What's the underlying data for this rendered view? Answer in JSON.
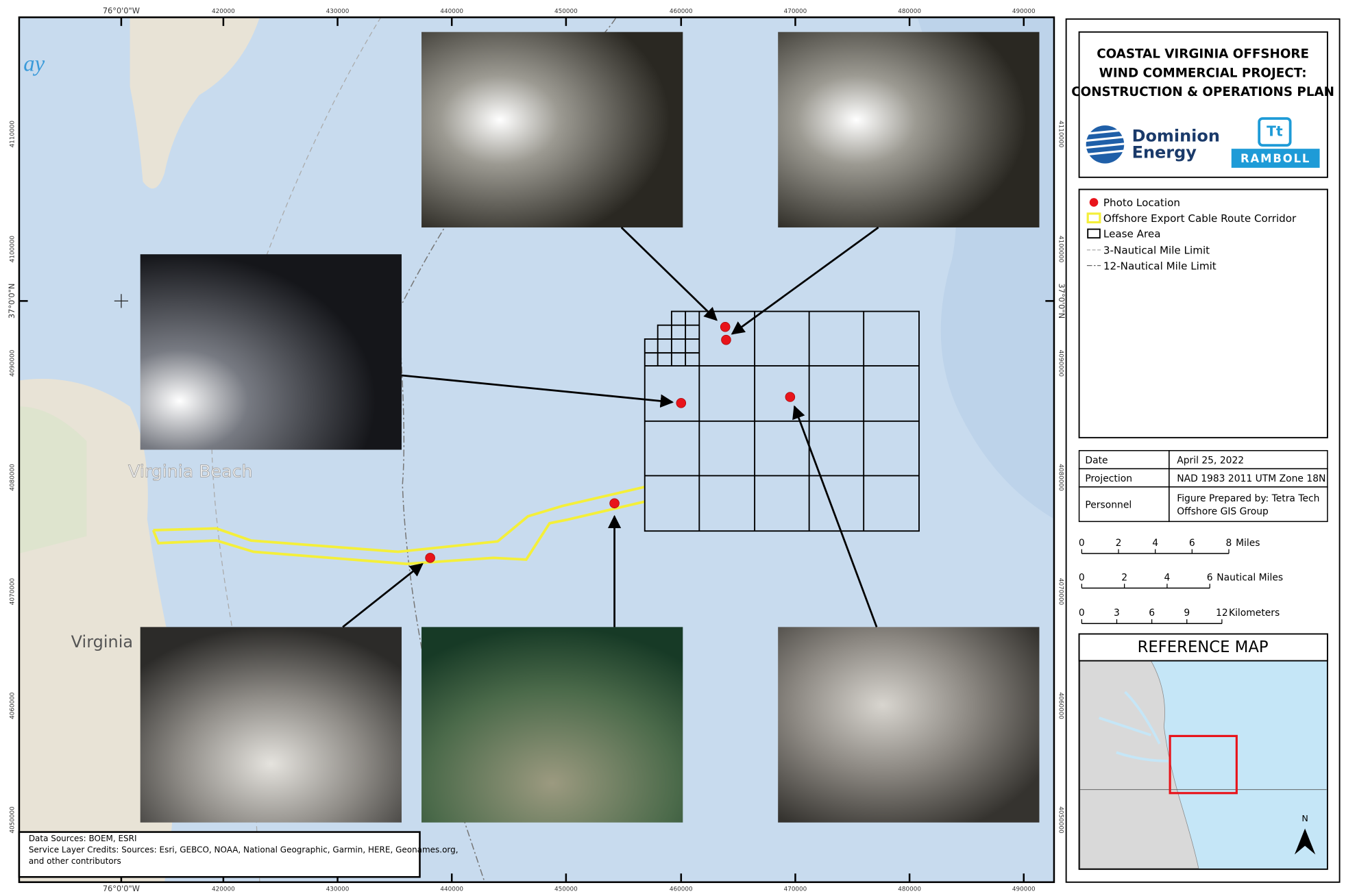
{
  "header": {
    "title_lines": [
      "COASTAL VIRGINIA OFFSHORE",
      "WIND COMMERCIAL PROJECT:",
      "CONSTRUCTION & OPERATIONS PLAN"
    ]
  },
  "logos": {
    "dominion": [
      "Dominion",
      "Energy"
    ],
    "tetra": "Tt",
    "ramboll": "RAMBOLL"
  },
  "legend": {
    "items": [
      "Photo Location",
      "Offshore Export Cable Route Corridor",
      "Lease Area",
      "3-Nautical Mile Limit",
      "12-Nautical Mile Limit"
    ]
  },
  "info_table": {
    "rows": [
      {
        "label": "Date",
        "lines": [
          "April 25, 2022"
        ]
      },
      {
        "label": "Projection",
        "lines": [
          "NAD 1983 2011 UTM Zone 18N"
        ]
      },
      {
        "label": "Personnel",
        "lines": [
          "Figure Prepared by: Tetra Tech",
          "Offshore GIS Group"
        ]
      }
    ]
  },
  "scale_bars": [
    {
      "ticks": [
        0,
        2,
        4,
        6,
        8
      ],
      "unit": "Miles"
    },
    {
      "ticks": [
        0,
        2,
        4,
        6
      ],
      "unit": "Nautical Miles"
    },
    {
      "ticks": [
        0,
        3,
        6,
        9,
        12
      ],
      "unit": "Kilometers"
    }
  ],
  "reference_map": {
    "title": "REFERENCE MAP",
    "north": "N"
  },
  "map": {
    "x_labels": [
      "76°0'0\"W",
      "420000",
      "430000",
      "440000",
      "450000",
      "460000",
      "470000",
      "480000",
      "490000"
    ],
    "y_labels": [
      "4110000",
      "4100000",
      "37°0'0\"N",
      "4090000",
      "4080000",
      "4070000",
      "4060000",
      "4050000"
    ],
    "place_labels": [
      "ay",
      "Virginia Beach",
      "Virginia"
    ]
  },
  "credits": {
    "lines": [
      "Data Sources: BOEM, ESRI",
      "Service Layer Credits: Sources: Esri, GEBCO, NOAA, National Geographic, Garmin, HERE, Geonames.org,",
      "and other contributors"
    ]
  }
}
